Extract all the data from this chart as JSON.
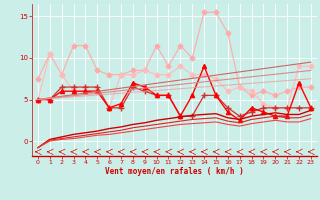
{
  "background_color": "#cceee8",
  "grid_color": "#ffffff",
  "xlabel": "Vent moyen/en rafales ( km/h )",
  "xlabel_color": "#cc0000",
  "tick_color": "#cc0000",
  "xlim": [
    -0.5,
    23.5
  ],
  "ylim": [
    -1.8,
    16.5
  ],
  "yticks": [
    0,
    5,
    10,
    15
  ],
  "xticks": [
    0,
    1,
    2,
    3,
    4,
    5,
    6,
    7,
    8,
    9,
    10,
    11,
    12,
    13,
    14,
    15,
    16,
    17,
    18,
    19,
    20,
    21,
    22,
    23
  ],
  "lines": [
    {
      "x": [
        0,
        1,
        2,
        3,
        4,
        5,
        6,
        7,
        8,
        9,
        10,
        11,
        12,
        13,
        14,
        15,
        16,
        17,
        18,
        19,
        20,
        21,
        22,
        23
      ],
      "y": [
        7.5,
        10.5,
        8.0,
        11.5,
        11.5,
        8.5,
        8.0,
        8.0,
        8.5,
        8.5,
        11.5,
        9.0,
        11.5,
        10.0,
        15.5,
        15.5,
        13.0,
        6.5,
        5.5,
        6.0,
        5.5,
        6.0,
        6.5,
        6.5
      ],
      "color": "#ffaaaa",
      "linewidth": 0.8,
      "marker": "D",
      "markersize": 2.5,
      "alpha": 1.0
    },
    {
      "x": [
        0,
        1,
        2,
        3,
        4,
        5,
        6,
        7,
        8,
        9,
        10,
        11,
        12,
        13,
        14,
        15,
        16,
        17,
        18,
        19,
        20,
        21,
        22,
        23
      ],
      "y": [
        5.0,
        10.5,
        8.0,
        6.0,
        6.0,
        6.2,
        4.0,
        8.0,
        8.0,
        8.5,
        8.0,
        8.0,
        9.0,
        8.0,
        8.0,
        7.5,
        6.0,
        6.5,
        6.0,
        4.5,
        4.0,
        4.0,
        9.0,
        9.0
      ],
      "color": "#ffbbbb",
      "linewidth": 0.8,
      "marker": "D",
      "markersize": 2.5,
      "alpha": 1.0
    },
    {
      "x": [
        0,
        1,
        2,
        3,
        4,
        5,
        6,
        7,
        8,
        9,
        10,
        11,
        12,
        13,
        14,
        15,
        16,
        17,
        18,
        19,
        20,
        21,
        22,
        23
      ],
      "y": [
        5.0,
        5.0,
        6.5,
        6.5,
        6.5,
        6.5,
        4.0,
        4.0,
        6.5,
        6.0,
        5.5,
        5.5,
        3.0,
        3.0,
        5.5,
        5.5,
        4.0,
        3.0,
        3.5,
        4.0,
        4.0,
        4.0,
        4.0,
        4.0
      ],
      "color": "#cc3333",
      "linewidth": 0.9,
      "marker": "+",
      "markersize": 4,
      "alpha": 1.0
    },
    {
      "x": [
        0,
        1,
        2,
        3,
        4,
        5,
        6,
        7,
        8,
        9,
        10,
        11,
        12,
        13,
        14,
        15,
        16,
        17,
        18,
        19,
        20,
        21,
        22,
        23
      ],
      "y": [
        5.0,
        5.0,
        6.0,
        6.0,
        6.0,
        6.0,
        4.0,
        4.5,
        7.0,
        6.5,
        5.5,
        5.5,
        3.0,
        5.5,
        9.0,
        5.5,
        3.5,
        2.5,
        4.0,
        3.5,
        3.0,
        3.0,
        7.0,
        4.0
      ],
      "color": "#ff0000",
      "linewidth": 1.0,
      "marker": "^",
      "markersize": 3,
      "alpha": 1.0
    },
    {
      "x": [
        0,
        23
      ],
      "y": [
        5.0,
        9.5
      ],
      "color": "#cc6666",
      "linewidth": 0.8,
      "marker": null,
      "markersize": 0,
      "alpha": 1.0
    },
    {
      "x": [
        0,
        23
      ],
      "y": [
        5.0,
        8.5
      ],
      "color": "#dd8888",
      "linewidth": 0.8,
      "marker": null,
      "markersize": 0,
      "alpha": 1.0
    },
    {
      "x": [
        0,
        23
      ],
      "y": [
        5.0,
        7.5
      ],
      "color": "#ee9999",
      "linewidth": 0.8,
      "marker": null,
      "markersize": 0,
      "alpha": 0.7
    },
    {
      "x": [
        0,
        1,
        2,
        3,
        4,
        5,
        6,
        7,
        8,
        9,
        10,
        11,
        12,
        13,
        14,
        15,
        16,
        17,
        18,
        19,
        20,
        21,
        22,
        23
      ],
      "y": [
        -0.8,
        0.2,
        0.5,
        0.8,
        1.0,
        1.2,
        1.5,
        1.7,
        2.0,
        2.2,
        2.5,
        2.7,
        2.9,
        3.1,
        3.2,
        3.3,
        2.8,
        2.6,
        3.0,
        3.2,
        3.4,
        3.2,
        3.2,
        3.7
      ],
      "color": "#cc0000",
      "linewidth": 1.0,
      "marker": null,
      "markersize": 0,
      "alpha": 1.0
    },
    {
      "x": [
        0,
        1,
        2,
        3,
        4,
        5,
        6,
        7,
        8,
        9,
        10,
        11,
        12,
        13,
        14,
        15,
        16,
        17,
        18,
        19,
        20,
        21,
        22,
        23
      ],
      "y": [
        -0.8,
        0.1,
        0.3,
        0.5,
        0.7,
        0.9,
        1.1,
        1.3,
        1.6,
        1.8,
        2.0,
        2.2,
        2.4,
        2.6,
        2.7,
        2.8,
        2.4,
        2.2,
        2.6,
        2.8,
        3.0,
        2.8,
        2.8,
        3.2
      ],
      "color": "#dd2222",
      "linewidth": 0.8,
      "marker": null,
      "markersize": 0,
      "alpha": 1.0
    },
    {
      "x": [
        0,
        1,
        2,
        3,
        4,
        5,
        6,
        7,
        8,
        9,
        10,
        11,
        12,
        13,
        14,
        15,
        16,
        17,
        18,
        19,
        20,
        21,
        22,
        23
      ],
      "y": [
        -0.8,
        0.0,
        0.2,
        0.3,
        0.5,
        0.7,
        0.8,
        1.0,
        1.2,
        1.4,
        1.6,
        1.8,
        2.0,
        2.1,
        2.2,
        2.3,
        2.0,
        1.8,
        2.1,
        2.3,
        2.5,
        2.3,
        2.3,
        2.7
      ],
      "color": "#ee4444",
      "linewidth": 0.8,
      "marker": null,
      "markersize": 0,
      "alpha": 1.0
    }
  ]
}
